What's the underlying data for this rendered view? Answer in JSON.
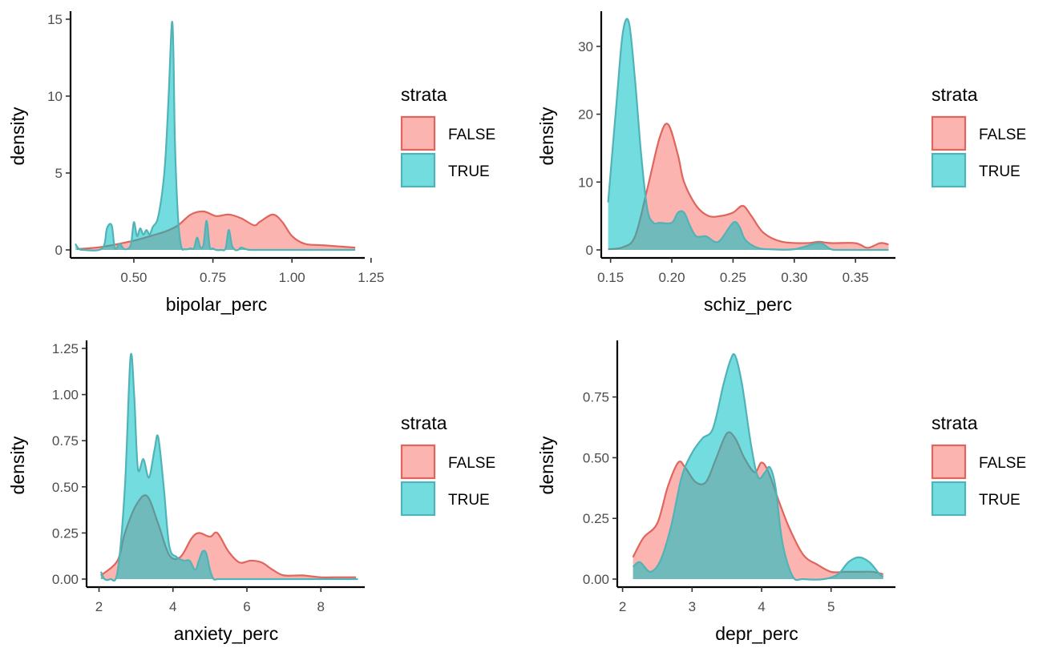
{
  "colors": {
    "false_fill": "#F8766D",
    "false_line": "#E0655C",
    "true_fill": "#00BFC4",
    "true_line": "#4FB3B8"
  },
  "chart_data": [
    {
      "type": "area",
      "xlabel": "bipolar_perc",
      "ylabel": "density",
      "xlim": [
        0.31,
        1.22
      ],
      "ylim": [
        0,
        15
      ],
      "xticks": [
        0.5,
        0.75,
        1.0
      ],
      "xtick_labels": [
        "0.50",
        "0.75",
        "1.00"
      ],
      "xticks_extra": [
        1.25
      ],
      "xtick_labels_extra": [
        "1.25"
      ],
      "yticks": [
        0,
        5,
        10,
        15
      ],
      "ytick_labels": [
        "0",
        "5",
        "10",
        "15"
      ],
      "legend": {
        "title": "strata",
        "placement": "right",
        "entries": [
          "FALSE",
          "TRUE"
        ]
      },
      "series": [
        {
          "name": "FALSE",
          "x": [
            0.32,
            0.4,
            0.5,
            0.56,
            0.6,
            0.64,
            0.68,
            0.72,
            0.76,
            0.8,
            0.84,
            0.88,
            0.9,
            0.94,
            0.97,
            1.0,
            1.04,
            1.1,
            1.2
          ],
          "y": [
            0.05,
            0.2,
            0.6,
            0.95,
            1.2,
            1.6,
            2.3,
            2.5,
            2.2,
            2.3,
            2.05,
            1.6,
            1.85,
            2.3,
            1.8,
            0.9,
            0.4,
            0.3,
            0.15
          ]
        },
        {
          "name": "TRUE",
          "x": [
            0.315,
            0.325,
            0.34,
            0.4,
            0.415,
            0.43,
            0.44,
            0.455,
            0.47,
            0.49,
            0.5,
            0.51,
            0.52,
            0.53,
            0.54,
            0.55,
            0.56,
            0.575,
            0.59,
            0.6,
            0.61,
            0.62,
            0.625,
            0.63,
            0.64,
            0.65,
            0.66,
            0.67,
            0.68,
            0.69,
            0.7,
            0.71,
            0.72,
            0.73,
            0.74,
            0.75,
            0.76,
            0.775,
            0.79,
            0.8,
            0.81,
            0.82,
            0.83,
            0.84,
            0.86,
            0.9,
            1.2
          ],
          "y": [
            0.4,
            0.1,
            0.0,
            0.1,
            1.4,
            1.6,
            0.1,
            0.4,
            0.05,
            0.3,
            1.8,
            0.9,
            1.4,
            1.0,
            1.3,
            1.0,
            1.5,
            2.0,
            3.8,
            6.0,
            10.0,
            14.7,
            13.0,
            7.0,
            2.0,
            0.2,
            0.05,
            0.05,
            0.1,
            0.1,
            0.8,
            0.2,
            0.3,
            1.9,
            0.2,
            0.1,
            0.0,
            0.0,
            0.1,
            1.3,
            0.3,
            0.0,
            0.0,
            0.15,
            0.02,
            0.0,
            0.0
          ]
        }
      ]
    },
    {
      "type": "area",
      "xlabel": "schiz_perc",
      "ylabel": "density",
      "xlim": [
        0.145,
        0.38
      ],
      "ylim": [
        0,
        34
      ],
      "xticks": [
        0.15,
        0.2,
        0.25,
        0.3,
        0.35
      ],
      "xtick_labels": [
        "0.15",
        "0.20",
        "0.25",
        "0.30",
        "0.35"
      ],
      "yticks": [
        0,
        10,
        20,
        30
      ],
      "ytick_labels": [
        "0",
        "10",
        "20",
        "30"
      ],
      "legend": {
        "title": "strata",
        "placement": "right",
        "entries": [
          "FALSE",
          "TRUE"
        ]
      },
      "series": [
        {
          "name": "FALSE",
          "x": [
            0.148,
            0.16,
            0.17,
            0.18,
            0.19,
            0.197,
            0.205,
            0.21,
            0.22,
            0.23,
            0.24,
            0.25,
            0.258,
            0.265,
            0.275,
            0.29,
            0.31,
            0.32,
            0.33,
            0.35,
            0.36,
            0.37,
            0.377
          ],
          "y": [
            0.1,
            0.4,
            2.0,
            9.0,
            16.5,
            18.5,
            14.0,
            10.0,
            6.5,
            5.0,
            5.0,
            5.5,
            6.5,
            5.0,
            2.5,
            1.2,
            1.0,
            1.2,
            1.0,
            1.0,
            0.3,
            1.0,
            0.8
          ]
        },
        {
          "name": "TRUE",
          "x": [
            0.148,
            0.155,
            0.16,
            0.165,
            0.17,
            0.175,
            0.18,
            0.185,
            0.19,
            0.2,
            0.205,
            0.21,
            0.215,
            0.22,
            0.228,
            0.235,
            0.24,
            0.25,
            0.255,
            0.26,
            0.27,
            0.28,
            0.3,
            0.32,
            0.33,
            0.34,
            0.377
          ],
          "y": [
            7.0,
            22.0,
            32.0,
            33.5,
            25.0,
            14.0,
            6.0,
            4.0,
            4.0,
            4.0,
            5.5,
            5.5,
            3.5,
            2.0,
            2.0,
            1.2,
            1.5,
            4.0,
            3.5,
            1.5,
            0.3,
            0.1,
            0.1,
            1.0,
            0.1,
            0.0,
            0.0
          ]
        }
      ]
    },
    {
      "type": "area",
      "xlabel": "anxiety_perc",
      "ylabel": "density",
      "xlim": [
        1.75,
        9.1
      ],
      "ylim": [
        0,
        1.25
      ],
      "xticks": [
        2,
        4,
        6,
        8
      ],
      "xtick_labels": [
        "2",
        "4",
        "6",
        "8"
      ],
      "yticks": [
        0,
        0.25,
        0.5,
        0.75,
        1.0,
        1.25
      ],
      "ytick_labels": [
        "0.00",
        "0.25",
        "0.50",
        "0.75",
        "1.00",
        "1.25"
      ],
      "legend": {
        "title": "strata",
        "placement": "right",
        "entries": [
          "FALSE",
          "TRUE"
        ]
      },
      "series": [
        {
          "name": "FALSE",
          "x": [
            2.05,
            2.5,
            2.7,
            3.0,
            3.3,
            3.6,
            3.9,
            4.2,
            4.5,
            4.7,
            5.0,
            5.2,
            5.5,
            5.8,
            6.1,
            6.4,
            6.7,
            7.0,
            7.5,
            8.0,
            8.5,
            8.95
          ],
          "y": [
            0.02,
            0.1,
            0.25,
            0.4,
            0.45,
            0.3,
            0.13,
            0.12,
            0.22,
            0.25,
            0.23,
            0.25,
            0.15,
            0.09,
            0.1,
            0.09,
            0.05,
            0.02,
            0.02,
            0.01,
            0.01,
            0.01
          ]
        },
        {
          "name": "TRUE",
          "x": [
            2.05,
            2.15,
            2.3,
            2.5,
            2.7,
            2.85,
            2.95,
            3.05,
            3.2,
            3.35,
            3.5,
            3.6,
            3.75,
            3.9,
            4.1,
            4.3,
            4.45,
            4.6,
            4.7,
            4.8,
            4.9,
            5.0,
            5.1,
            5.2,
            5.4,
            6.0,
            9.0
          ],
          "y": [
            0.04,
            0.0,
            0.0,
            0.04,
            0.5,
            1.2,
            1.0,
            0.6,
            0.65,
            0.55,
            0.7,
            0.77,
            0.5,
            0.18,
            0.12,
            0.1,
            0.1,
            0.05,
            0.1,
            0.15,
            0.14,
            0.05,
            0.0,
            0.0,
            0.0,
            0.0,
            0.0
          ]
        }
      ]
    },
    {
      "type": "area",
      "xlabel": "depr_perc",
      "ylabel": "density",
      "xlim": [
        1.97,
        5.88
      ],
      "ylim": [
        0,
        0.95
      ],
      "xticks": [
        2,
        3,
        4,
        5
      ],
      "xtick_labels": [
        "2",
        "3",
        "4",
        "5"
      ],
      "yticks": [
        0,
        0.25,
        0.5,
        0.75
      ],
      "ytick_labels": [
        "0.00",
        "0.25",
        "0.50",
        "0.75"
      ],
      "legend": {
        "title": "strata",
        "placement": "right",
        "entries": [
          "FALSE",
          "TRUE"
        ]
      },
      "series": [
        {
          "name": "FALSE",
          "x": [
            2.15,
            2.3,
            2.5,
            2.65,
            2.8,
            2.9,
            3.05,
            3.2,
            3.35,
            3.5,
            3.62,
            3.75,
            3.9,
            4.0,
            4.1,
            4.25,
            4.4,
            4.6,
            4.8,
            5.0,
            5.2,
            5.4,
            5.6,
            5.75
          ],
          "y": [
            0.09,
            0.17,
            0.23,
            0.38,
            0.48,
            0.46,
            0.4,
            0.4,
            0.5,
            0.6,
            0.58,
            0.5,
            0.44,
            0.48,
            0.44,
            0.32,
            0.21,
            0.1,
            0.06,
            0.03,
            0.03,
            0.03,
            0.03,
            0.02
          ]
        },
        {
          "name": "TRUE",
          "x": [
            2.15,
            2.25,
            2.4,
            2.55,
            2.7,
            2.85,
            3.0,
            3.15,
            3.3,
            3.45,
            3.55,
            3.62,
            3.72,
            3.85,
            3.95,
            4.05,
            4.12,
            4.2,
            4.3,
            4.45,
            4.6,
            4.9,
            5.1,
            5.25,
            5.4,
            5.55,
            5.7,
            5.75
          ],
          "y": [
            0.05,
            0.07,
            0.03,
            0.08,
            0.22,
            0.42,
            0.52,
            0.58,
            0.62,
            0.8,
            0.9,
            0.92,
            0.8,
            0.55,
            0.42,
            0.44,
            0.46,
            0.38,
            0.15,
            0.01,
            0.0,
            0.0,
            0.02,
            0.07,
            0.09,
            0.07,
            0.02,
            0.01
          ]
        }
      ]
    }
  ]
}
